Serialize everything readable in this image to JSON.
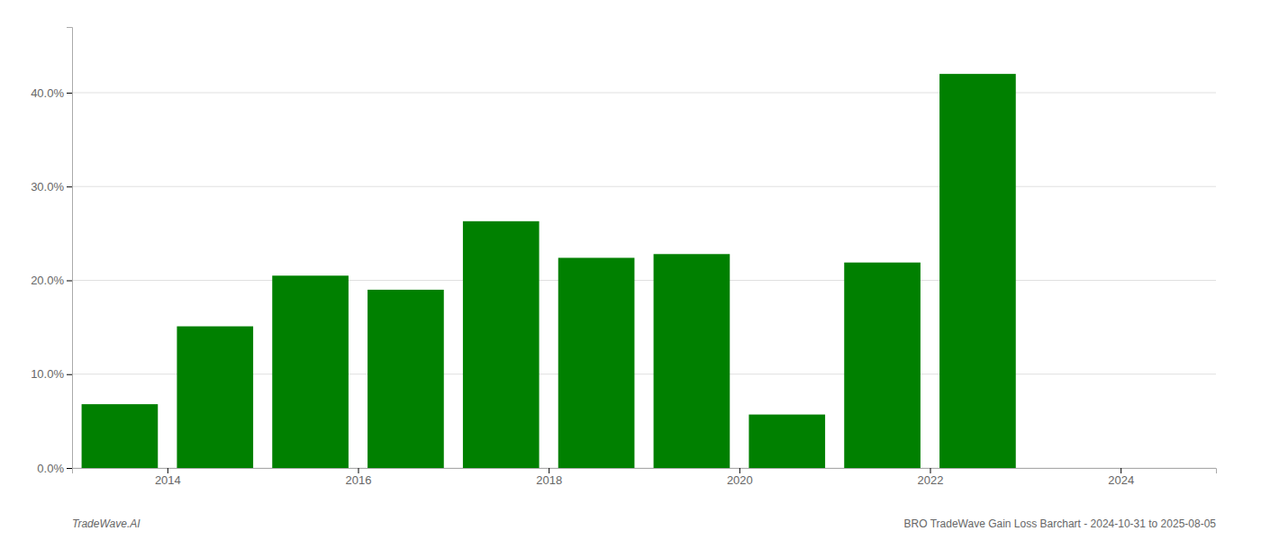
{
  "chart_data": {
    "type": "bar",
    "x": [
      2013.5,
      2014.5,
      2015.5,
      2016.5,
      2017.5,
      2018.5,
      2019.5,
      2020.5,
      2021.5,
      2022.5
    ],
    "values": [
      0.068,
      0.151,
      0.205,
      0.19,
      0.263,
      0.224,
      0.228,
      0.057,
      0.219,
      0.42
    ],
    "color": "#008000",
    "xlim": [
      2013.0,
      2025.0
    ],
    "xticks": [
      2014,
      2016,
      2018,
      2020,
      2022,
      2024
    ],
    "ylim": [
      0,
      0.47
    ],
    "yticks": [
      {
        "value": 0.0,
        "label": "0.0%"
      },
      {
        "value": 0.1,
        "label": "10.0%"
      },
      {
        "value": 0.2,
        "label": "20.0%"
      },
      {
        "value": 0.3,
        "label": "30.0%"
      },
      {
        "value": 0.4,
        "label": "40.0%"
      }
    ],
    "grid": true,
    "annotations": [
      "TradeWave.AI",
      "BRO TradeWave Gain Loss Barchart - 2024-10-31 to 2025-08-05"
    ]
  }
}
